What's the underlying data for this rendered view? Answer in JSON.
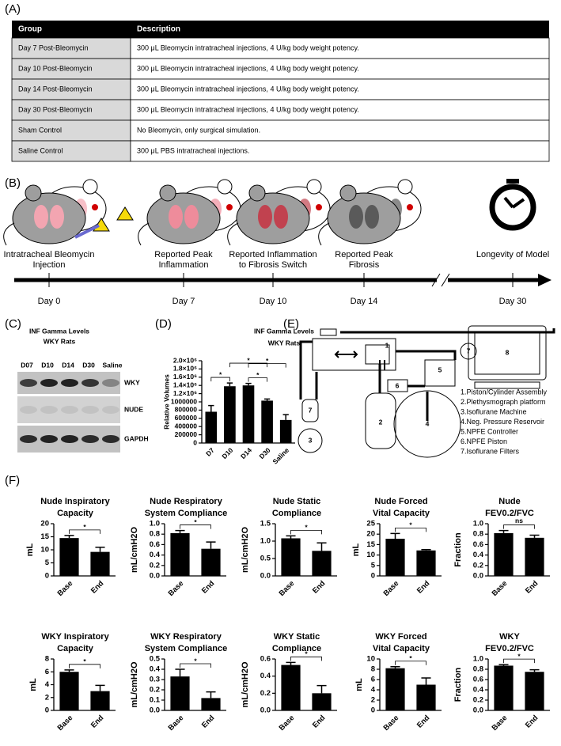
{
  "panels": [
    "(A)",
    "(B)",
    "(C)",
    "(D)",
    "(E)",
    "(F)"
  ],
  "table": {
    "header": [
      "Group",
      "Description"
    ],
    "rows": [
      [
        "Day 7 Post-Bleomycin",
        "300 μL Bleomycin intratracheal injections, 4 U/kg body weight potency."
      ],
      [
        "Day 10 Post-Bleomycin",
        "300 μL Bleomycin intratracheal injections, 4 U/kg body weight potency."
      ],
      [
        "Day 14 Post-Bleomycin",
        "300 μL Bleomycin intratracheal injections, 4 U/kg body weight potency."
      ],
      [
        "Day 30 Post-Bleomycin",
        "300 μL Bleomycin intratracheal injections, 4 U/kg body weight potency."
      ],
      [
        "Sham Control",
        "No Bleomycin, only surgical simulation."
      ],
      [
        "Saline Control",
        "300 μL PBS intratracheal injections."
      ]
    ]
  },
  "timeline": {
    "events": [
      {
        "label": [
          "Intratracheal Bleomycin",
          "Injection"
        ],
        "day": "Day 0"
      },
      {
        "label": [
          "Reported Peak",
          "Inflammation"
        ],
        "day": "Day 7"
      },
      {
        "label": [
          "Reported Inflammation",
          "to Fibrosis Switch"
        ],
        "day": "Day 10"
      },
      {
        "label": [
          "Reported Peak",
          "Fibrosis"
        ],
        "day": "Day 14"
      },
      {
        "label": [
          "Longevity of Model"
        ],
        "day": "Day 30"
      }
    ]
  },
  "blot": {
    "title": [
      "INF Gamma Levels",
      "WKY Rats"
    ],
    "lanes": [
      "D07",
      "D10",
      "D14",
      "D30",
      "Saline"
    ],
    "rows": [
      "WKY",
      "NUDE",
      "GAPDH"
    ]
  },
  "diagram": {
    "labels": [
      "1",
      "2",
      "3",
      "4",
      "5",
      "6",
      "7",
      "7",
      "8"
    ],
    "legend": [
      "1.Piston/Cylinder Assembly",
      "2.Plethysmograph platform",
      "3.Isoflurane Machine",
      "4.Neg. Pressure Reservoir",
      "5.NPFE Controller",
      "6.NPFE Piston",
      "7.Isoflurane Filters"
    ]
  },
  "chart_data": [
    {
      "type": "bar",
      "title": [
        "INF Gamma Levels",
        "WKY Rats"
      ],
      "ylabel": "Relative Volumes",
      "categories": [
        "D7",
        "D10",
        "D14",
        "D30",
        "Saline"
      ],
      "values": [
        760000,
        1380000,
        1400000,
        1030000,
        560000
      ],
      "errors": [
        150000,
        80000,
        50000,
        40000,
        130000
      ],
      "color": "#000000",
      "ylim": [
        0,
        2000000
      ],
      "yticks": [
        0,
        200000,
        400000,
        600000,
        800000,
        1000000,
        {
          "value": 1200000,
          "label": "1.2×10⁶"
        },
        {
          "value": 1400000,
          "label": "1.4×10⁶"
        },
        {
          "value": 1600000,
          "label": "1.6×10⁶"
        },
        {
          "value": 1800000,
          "label": "1.8×10⁶"
        },
        {
          "value": 2000000,
          "label": "2.0×10⁶"
        }
      ],
      "significance": [
        {
          "pair": [
            0,
            1
          ],
          "label": "*"
        },
        {
          "pair": [
            2,
            3
          ],
          "label": "*"
        },
        {
          "pair": [
            1,
            3
          ],
          "label": "*"
        },
        {
          "pair": [
            2,
            4
          ],
          "label": "*"
        }
      ]
    },
    {
      "type": "bar",
      "title": [
        "Nude Inspiratory",
        "Capacity"
      ],
      "ylabel": "mL",
      "categories": [
        "Base",
        "End"
      ],
      "values": [
        14.5,
        9.2
      ],
      "errors": [
        1.0,
        1.8
      ],
      "color": "#000000",
      "ylim": [
        0,
        20
      ],
      "yticks": [
        0,
        5,
        10,
        15,
        20
      ],
      "significance": [
        {
          "pair": [
            0,
            1
          ],
          "label": "*"
        }
      ]
    },
    {
      "type": "bar",
      "title": [
        "Nude Respiratory",
        "System Compliance"
      ],
      "ylabel": "mL/cmH2O",
      "categories": [
        "Base",
        "End"
      ],
      "values": [
        0.82,
        0.52
      ],
      "errors": [
        0.05,
        0.13
      ],
      "color": "#000000",
      "ylim": [
        0,
        1
      ],
      "yticks": [
        {
          "value": 0,
          "label": "0.0"
        },
        0.2,
        0.4,
        0.6,
        0.8,
        {
          "value": 1,
          "label": "1.0"
        }
      ],
      "significance": [
        {
          "pair": [
            0,
            1
          ],
          "label": "*"
        }
      ]
    },
    {
      "type": "bar",
      "title": [
        "Nude Static",
        "Compliance"
      ],
      "ylabel": "mL/cmH2O",
      "categories": [
        "Base",
        "End"
      ],
      "values": [
        1.08,
        0.72
      ],
      "errors": [
        0.07,
        0.23
      ],
      "color": "#000000",
      "ylim": [
        0,
        1.5
      ],
      "yticks": [
        {
          "value": 0,
          "label": "0.0"
        },
        0.5,
        {
          "value": 1,
          "label": "1.0"
        },
        1.5
      ],
      "significance": [
        {
          "pair": [
            0,
            1
          ],
          "label": "*"
        }
      ]
    },
    {
      "type": "bar",
      "title": [
        "Nude Forced",
        "Vital Capacity"
      ],
      "ylabel": "mL",
      "categories": [
        "Base",
        "End"
      ],
      "values": [
        17.8,
        12.2
      ],
      "errors": [
        2.5,
        0.4
      ],
      "color": "#000000",
      "ylim": [
        0,
        25
      ],
      "yticks": [
        0,
        5,
        10,
        15,
        20,
        25
      ],
      "significance": [
        {
          "pair": [
            0,
            1
          ],
          "label": "*"
        }
      ]
    },
    {
      "type": "bar",
      "title": [
        "Nude",
        "FEV0.2/FVC"
      ],
      "ylabel": "Fraction",
      "categories": [
        "Base",
        "End"
      ],
      "values": [
        0.82,
        0.73
      ],
      "errors": [
        0.05,
        0.05
      ],
      "color": "#000000",
      "ylim": [
        0,
        1
      ],
      "yticks": [
        {
          "value": 0,
          "label": "0.0"
        },
        0.2,
        0.4,
        0.6,
        0.8,
        {
          "value": 1,
          "label": "1.0"
        }
      ],
      "significance": [
        {
          "pair": [
            0,
            1
          ],
          "label": "ns"
        }
      ]
    },
    {
      "type": "bar",
      "title": [
        "WKY Inspiratory",
        "Capacity"
      ],
      "ylabel": "mL",
      "categories": [
        "Base",
        "End"
      ],
      "values": [
        6.0,
        3.0
      ],
      "errors": [
        0.3,
        0.9
      ],
      "color": "#000000",
      "ylim": [
        0,
        8
      ],
      "yticks": [
        0,
        2,
        4,
        6,
        8
      ],
      "significance": [
        {
          "pair": [
            0,
            1
          ],
          "label": "*"
        }
      ]
    },
    {
      "type": "bar",
      "title": [
        "WKY Respiratory",
        "System Compliance"
      ],
      "ylabel": "mL/cmH2O",
      "categories": [
        "Base",
        "End"
      ],
      "values": [
        0.33,
        0.12
      ],
      "errors": [
        0.07,
        0.06
      ],
      "color": "#000000",
      "ylim": [
        0,
        0.5
      ],
      "yticks": [
        {
          "value": 0,
          "label": "0.0"
        },
        0.1,
        0.2,
        0.3,
        0.4,
        0.5
      ],
      "significance": [
        {
          "pair": [
            0,
            1
          ],
          "label": "*"
        }
      ]
    },
    {
      "type": "bar",
      "title": [
        "WKY Static",
        "Compliance"
      ],
      "ylabel": "mL/cmH2O",
      "categories": [
        "Base",
        "End"
      ],
      "values": [
        0.53,
        0.2
      ],
      "errors": [
        0.03,
        0.09
      ],
      "color": "#000000",
      "ylim": [
        0,
        0.6
      ],
      "yticks": [
        {
          "value": 0,
          "label": "0.0"
        },
        0.2,
        0.4,
        0.6
      ],
      "significance": [
        {
          "pair": [
            0,
            1
          ],
          "label": "*"
        }
      ]
    },
    {
      "type": "bar",
      "title": [
        "WKY Forced",
        "Vital Capacity"
      ],
      "ylabel": "mL",
      "categories": [
        "Base",
        "End"
      ],
      "values": [
        8.2,
        5.0
      ],
      "errors": [
        0.3,
        1.3
      ],
      "color": "#000000",
      "ylim": [
        0,
        10
      ],
      "yticks": [
        0,
        2,
        4,
        6,
        8,
        10
      ],
      "significance": [
        {
          "pair": [
            0,
            1
          ],
          "label": "*"
        }
      ]
    },
    {
      "type": "bar",
      "title": [
        "WKY",
        "FEV0.2/FVC"
      ],
      "ylabel": "Fraction",
      "categories": [
        "Base",
        "End"
      ],
      "values": [
        0.87,
        0.75
      ],
      "errors": [
        0.02,
        0.04
      ],
      "color": "#000000",
      "ylim": [
        0,
        1
      ],
      "yticks": [
        {
          "value": 0,
          "label": "0.0"
        },
        0.2,
        0.4,
        0.6,
        0.8,
        {
          "value": 1,
          "label": "1.0"
        }
      ],
      "significance": [
        {
          "pair": [
            0,
            1
          ],
          "label": "*"
        }
      ]
    }
  ]
}
